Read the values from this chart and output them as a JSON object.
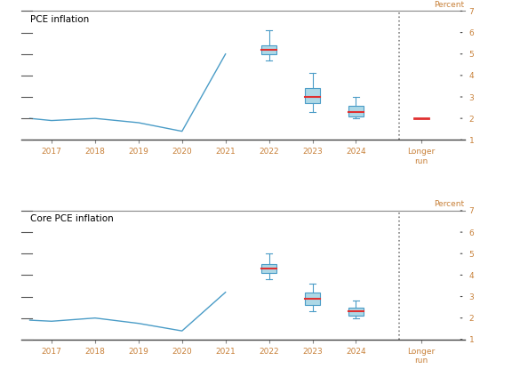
{
  "pce": {
    "title": "PCE inflation",
    "line_x": [
      2016.5,
      2017,
      2018,
      2019,
      2020,
      2021
    ],
    "line_y": [
      2.0,
      1.9,
      2.0,
      1.8,
      1.4,
      5.0
    ],
    "boxes": {
      "2022": {
        "x": 2022,
        "median": 5.2,
        "q1": 5.0,
        "q3": 5.4,
        "whisker_low": 4.7,
        "whisker_high": 6.1
      },
      "2023": {
        "x": 2023,
        "median": 3.0,
        "q1": 2.7,
        "q3": 3.4,
        "whisker_low": 2.3,
        "whisker_high": 4.1
      },
      "2024": {
        "x": 2024,
        "median": 2.3,
        "q1": 2.1,
        "q3": 2.6,
        "whisker_low": 2.0,
        "whisker_high": 3.0
      }
    },
    "longer_run_median": 2.0,
    "longer_run_x": 2025.5
  },
  "core_pce": {
    "title": "Core PCE inflation",
    "line_x": [
      2016.5,
      2017,
      2018,
      2019,
      2020,
      2021
    ],
    "line_y": [
      1.9,
      1.85,
      2.0,
      1.75,
      1.4,
      3.2
    ],
    "boxes": {
      "2022": {
        "x": 2022,
        "median": 4.3,
        "q1": 4.1,
        "q3": 4.5,
        "whisker_low": 3.8,
        "whisker_high": 5.0
      },
      "2023": {
        "x": 2023,
        "median": 2.9,
        "q1": 2.6,
        "q3": 3.2,
        "whisker_low": 2.3,
        "whisker_high": 3.6
      },
      "2024": {
        "x": 2024,
        "median": 2.3,
        "q1": 2.1,
        "q3": 2.5,
        "whisker_low": 2.0,
        "whisker_high": 2.8
      }
    },
    "longer_run_median": null,
    "longer_run_x": 2025.5
  },
  "line_color": "#4a9cc7",
  "box_fill_color": "#add8e6",
  "box_edge_color": "#4a9cc7",
  "median_color": "#e03030",
  "longer_run_color": "#e03030",
  "dashed_line_x": 2025.0,
  "ylim": [
    1.0,
    7.0
  ],
  "yticks": [
    1,
    2,
    3,
    4,
    5,
    6,
    7
  ],
  "xlim": [
    2016.3,
    2026.5
  ],
  "xtick_labels": [
    "2017",
    "2018",
    "2019",
    "2020",
    "2021",
    "2022",
    "2023",
    "2024",
    "Longer\nrun"
  ],
  "xtick_positions": [
    2017,
    2018,
    2019,
    2020,
    2021,
    2022,
    2023,
    2024,
    2025.5
  ],
  "percent_label_color": "#c8813a",
  "title_color": "#000000",
  "box_width": 0.35,
  "left_tick_marks": [
    1,
    2,
    3,
    4,
    5,
    6,
    7
  ],
  "background_color": "#ffffff"
}
